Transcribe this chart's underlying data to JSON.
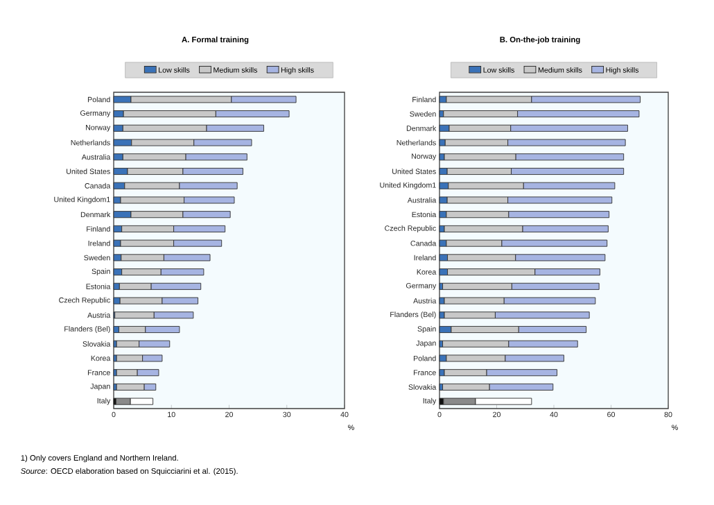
{
  "chart_data": [
    {
      "type": "bar",
      "orientation": "horizontal",
      "stacked": true,
      "title": "A. Formal training",
      "xlabel": "%",
      "legend": "top",
      "categories": [
        "Poland",
        "Germany",
        "Norway",
        "Netherlands",
        "Australia",
        "United States",
        "Canada",
        "United Kingdom1",
        "Denmark",
        "Finland",
        "Ireland",
        "Sweden",
        "Spain",
        "Estonia",
        "Czech Republic",
        "Austria",
        "Flanders (Bel)",
        "Slovakia",
        "Korea",
        "France",
        "Japan",
        "Italy"
      ],
      "xlim": [
        0,
        40
      ],
      "xticks": [
        0,
        10,
        20,
        30,
        40
      ],
      "series": [
        {
          "name": "Low skills",
          "color": "#3a72b8",
          "colors": [
            "#3a72b8",
            "#3a72b8",
            "#3a72b8",
            "#3a72b8",
            "#3a72b8",
            "#3a72b8",
            "#3a72b8",
            "#3a72b8",
            "#3a72b8",
            "#3a72b8",
            "#3a72b8",
            "#3a72b8",
            "#3a72b8",
            "#3a72b8",
            "#3a72b8",
            "#3a72b8",
            "#3a72b8",
            "#3a72b8",
            "#3a72b8",
            "#3a72b8",
            "#3a72b8",
            "#111111"
          ],
          "values": [
            3.0,
            1.7,
            1.6,
            3.1,
            1.6,
            2.4,
            1.9,
            1.2,
            3.0,
            1.4,
            1.2,
            1.3,
            1.4,
            1.0,
            1.1,
            0.2,
            0.9,
            0.5,
            0.5,
            0.5,
            0.5,
            0.4
          ]
        },
        {
          "name": "Medium skills",
          "color": "#c8c8c8",
          "colors": [
            "#c8c8c8",
            "#c8c8c8",
            "#c8c8c8",
            "#c8c8c8",
            "#c8c8c8",
            "#c8c8c8",
            "#c8c8c8",
            "#c8c8c8",
            "#c8c8c8",
            "#c8c8c8",
            "#c8c8c8",
            "#c8c8c8",
            "#c8c8c8",
            "#c8c8c8",
            "#c8c8c8",
            "#c8c8c8",
            "#c8c8c8",
            "#c8c8c8",
            "#c8c8c8",
            "#c8c8c8",
            "#c8c8c8",
            "#8a8a8a"
          ],
          "values": [
            17.4,
            16.0,
            14.5,
            10.8,
            10.9,
            9.6,
            9.5,
            11.0,
            9.0,
            9.0,
            9.2,
            7.4,
            6.8,
            5.5,
            7.3,
            6.8,
            4.6,
            3.9,
            4.5,
            3.6,
            4.8,
            2.5
          ]
        },
        {
          "name": "High skills",
          "color": "#a6b4e2",
          "colors": [
            "#a6b4e2",
            "#a6b4e2",
            "#a6b4e2",
            "#a6b4e2",
            "#a6b4e2",
            "#a6b4e2",
            "#a6b4e2",
            "#a6b4e2",
            "#a6b4e2",
            "#a6b4e2",
            "#a6b4e2",
            "#a6b4e2",
            "#a6b4e2",
            "#a6b4e2",
            "#a6b4e2",
            "#a6b4e2",
            "#a6b4e2",
            "#a6b4e2",
            "#a6b4e2",
            "#a6b4e2",
            "#a6b4e2",
            "#ffffff"
          ],
          "values": [
            11.2,
            12.7,
            9.9,
            10.0,
            10.6,
            10.4,
            10.0,
            8.7,
            8.2,
            8.9,
            8.3,
            8.0,
            7.4,
            8.6,
            6.2,
            6.8,
            5.9,
            5.3,
            3.4,
            3.7,
            2.0,
            3.9
          ]
        }
      ],
      "annotations": [
        "1) Only covers England and Northern Ireland.",
        "*Source*: OECD elaboration based on Squicciarini et al. (2015)."
      ]
    },
    {
      "type": "bar",
      "orientation": "horizontal",
      "stacked": true,
      "title": "B. On-the-job training",
      "xlabel": "%",
      "legend": "top",
      "categories": [
        "Finland",
        "Sweden",
        "Denmark",
        "Netherlands",
        "Norway",
        "United States",
        "United Kingdom1",
        "Australia",
        "Estonia",
        "Czech Republic",
        "Canada",
        "Ireland",
        "Korea",
        "Germany",
        "Austria",
        "Flanders (Bel)",
        "Spain",
        "Japan",
        "Poland",
        "France",
        "Slovakia",
        "Italy"
      ],
      "xlim": [
        0,
        80
      ],
      "xticks": [
        0,
        20,
        40,
        60,
        80
      ],
      "series": [
        {
          "name": "Low skills",
          "color": "#3a72b8",
          "colors": [
            "#3a72b8",
            "#3a72b8",
            "#3a72b8",
            "#3a72b8",
            "#3a72b8",
            "#3a72b8",
            "#3a72b8",
            "#3a72b8",
            "#3a72b8",
            "#3a72b8",
            "#3a72b8",
            "#3a72b8",
            "#3a72b8",
            "#3a72b8",
            "#3a72b8",
            "#3a72b8",
            "#3a72b8",
            "#3a72b8",
            "#3a72b8",
            "#3a72b8",
            "#3a72b8",
            "#111111"
          ],
          "values": [
            2.4,
            1.4,
            3.4,
            2.0,
            1.7,
            2.7,
            3.1,
            2.7,
            2.4,
            1.7,
            2.4,
            2.8,
            2.8,
            1.1,
            1.7,
            1.7,
            4.1,
            1.1,
            2.4,
            1.7,
            1.1,
            1.4
          ]
        },
        {
          "name": "Medium skills",
          "color": "#c8c8c8",
          "colors": [
            "#c8c8c8",
            "#c8c8c8",
            "#c8c8c8",
            "#c8c8c8",
            "#c8c8c8",
            "#c8c8c8",
            "#c8c8c8",
            "#c8c8c8",
            "#c8c8c8",
            "#c8c8c8",
            "#c8c8c8",
            "#c8c8c8",
            "#c8c8c8",
            "#c8c8c8",
            "#c8c8c8",
            "#c8c8c8",
            "#c8c8c8",
            "#c8c8c8",
            "#c8c8c8",
            "#c8c8c8",
            "#c8c8c8",
            "#8a8a8a"
          ],
          "values": [
            29.8,
            25.9,
            21.5,
            21.9,
            25.0,
            22.4,
            26.3,
            21.2,
            21.8,
            27.4,
            19.4,
            23.8,
            30.6,
            24.2,
            20.9,
            17.8,
            23.6,
            23.1,
            20.6,
            14.8,
            16.4,
            11.2
          ]
        },
        {
          "name": "High skills",
          "color": "#a6b4e2",
          "colors": [
            "#a6b4e2",
            "#a6b4e2",
            "#a6b4e2",
            "#a6b4e2",
            "#a6b4e2",
            "#a6b4e2",
            "#a6b4e2",
            "#a6b4e2",
            "#a6b4e2",
            "#a6b4e2",
            "#a6b4e2",
            "#a6b4e2",
            "#a6b4e2",
            "#a6b4e2",
            "#a6b4e2",
            "#a6b4e2",
            "#a6b4e2",
            "#a6b4e2",
            "#a6b4e2",
            "#a6b4e2",
            "#a6b4e2",
            "#ffffff"
          ],
          "values": [
            38.0,
            42.5,
            40.9,
            41.1,
            37.7,
            39.3,
            31.9,
            36.4,
            35.1,
            29.9,
            36.8,
            31.3,
            22.7,
            30.5,
            31.9,
            32.9,
            23.6,
            24.1,
            20.5,
            24.6,
            22.2,
            19.6
          ]
        }
      ]
    }
  ]
}
